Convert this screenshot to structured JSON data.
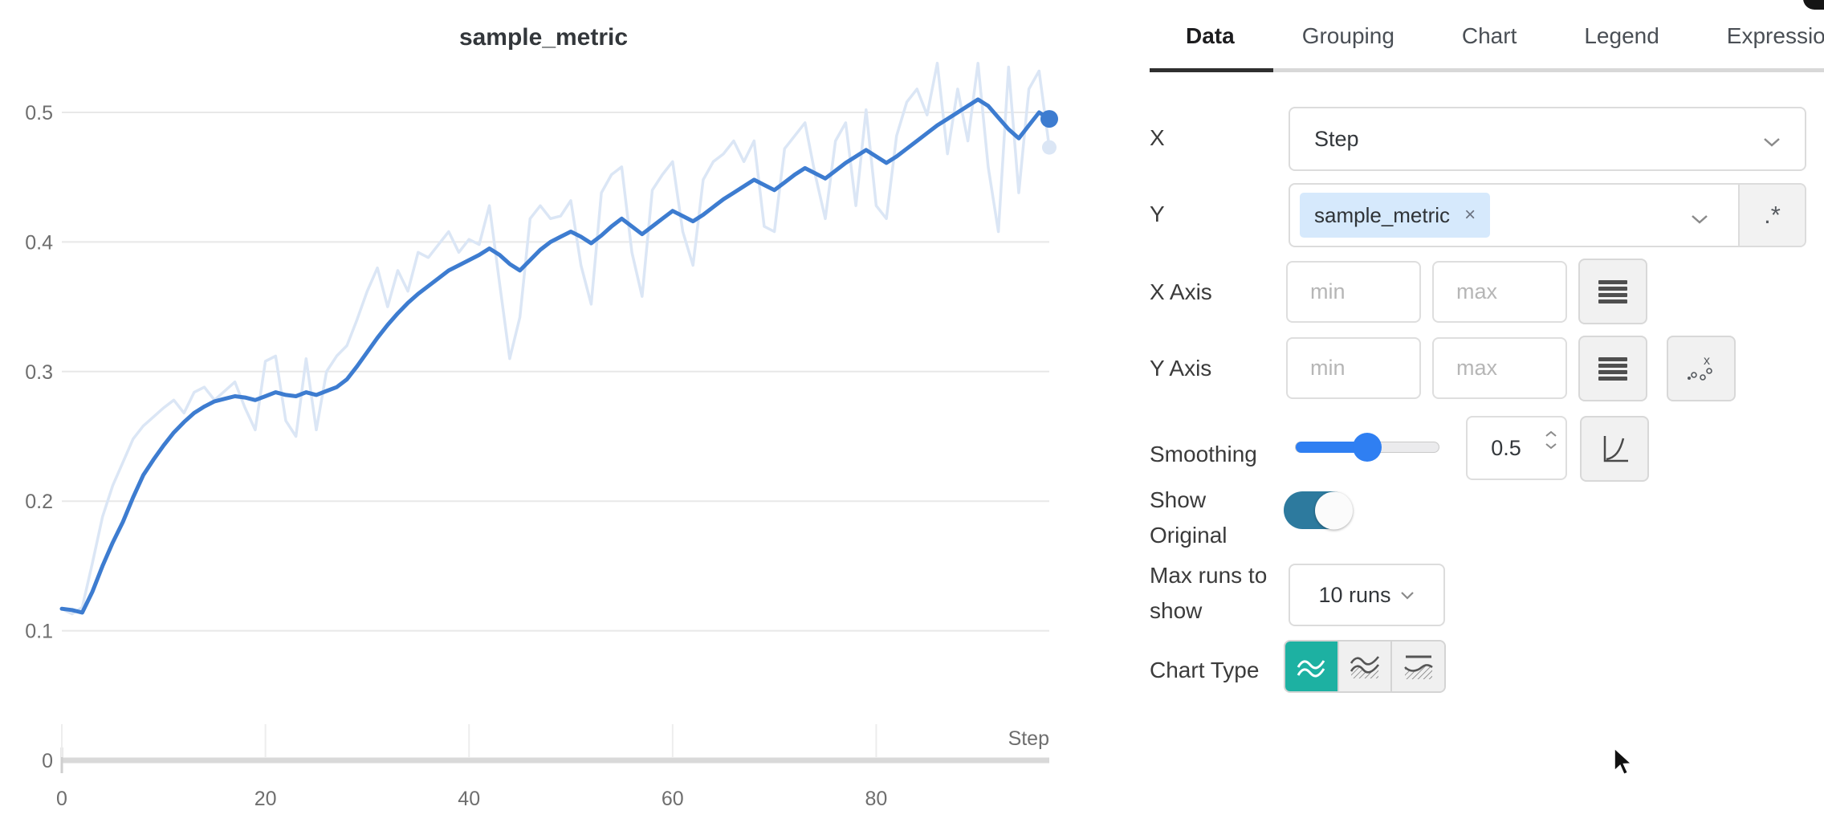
{
  "chart": {
    "title": "sample_metric"
  },
  "chart_data": {
    "type": "line",
    "title": "sample_metric",
    "xlabel": "Step",
    "ylabel": "",
    "x_start": 0,
    "x_step": 1,
    "x_range": [
      0,
      97
    ],
    "ylim": [
      0,
      0.55
    ],
    "x_tick_values": [
      0,
      20,
      40,
      60,
      80
    ],
    "y_tick_values": [
      0,
      0.1,
      0.2,
      0.3,
      0.4,
      0.5
    ],
    "grid": "horizontal",
    "legend": "none",
    "series": [
      {
        "name": "sample_metric (smoothed, 0.5)",
        "color": "#3d7cd0",
        "width": 5,
        "end_marker": true,
        "values": [
          0.117,
          0.116,
          0.114,
          0.13,
          0.15,
          0.168,
          0.184,
          0.203,
          0.22,
          0.232,
          0.243,
          0.253,
          0.261,
          0.268,
          0.273,
          0.277,
          0.279,
          0.281,
          0.28,
          0.278,
          0.281,
          0.284,
          0.282,
          0.281,
          0.284,
          0.282,
          0.285,
          0.288,
          0.294,
          0.304,
          0.315,
          0.326,
          0.336,
          0.345,
          0.353,
          0.36,
          0.366,
          0.372,
          0.378,
          0.382,
          0.386,
          0.39,
          0.395,
          0.39,
          0.383,
          0.378,
          0.386,
          0.394,
          0.4,
          0.404,
          0.408,
          0.404,
          0.399,
          0.405,
          0.412,
          0.418,
          0.412,
          0.406,
          0.412,
          0.418,
          0.424,
          0.42,
          0.416,
          0.421,
          0.427,
          0.433,
          0.438,
          0.443,
          0.448,
          0.444,
          0.44,
          0.446,
          0.452,
          0.457,
          0.453,
          0.449,
          0.455,
          0.461,
          0.466,
          0.471,
          0.466,
          0.461,
          0.466,
          0.472,
          0.478,
          0.484,
          0.49,
          0.495,
          0.5,
          0.505,
          0.51,
          0.505,
          0.496,
          0.487,
          0.48,
          0.49,
          0.5,
          0.495
        ]
      },
      {
        "name": "sample_metric (original)",
        "color": "#dbe6f5",
        "width": 3.5,
        "end_marker": true,
        "values": [
          0.117,
          0.113,
          0.118,
          0.152,
          0.188,
          0.212,
          0.23,
          0.248,
          0.258,
          0.265,
          0.272,
          0.278,
          0.268,
          0.284,
          0.288,
          0.278,
          0.285,
          0.292,
          0.272,
          0.255,
          0.308,
          0.312,
          0.262,
          0.25,
          0.31,
          0.255,
          0.3,
          0.312,
          0.32,
          0.34,
          0.362,
          0.38,
          0.35,
          0.378,
          0.362,
          0.392,
          0.388,
          0.398,
          0.408,
          0.392,
          0.402,
          0.398,
          0.428,
          0.368,
          0.31,
          0.342,
          0.418,
          0.428,
          0.418,
          0.42,
          0.432,
          0.382,
          0.352,
          0.438,
          0.452,
          0.458,
          0.392,
          0.358,
          0.44,
          0.452,
          0.462,
          0.408,
          0.382,
          0.448,
          0.462,
          0.468,
          0.478,
          0.462,
          0.478,
          0.412,
          0.408,
          0.472,
          0.482,
          0.492,
          0.452,
          0.418,
          0.478,
          0.492,
          0.428,
          0.502,
          0.428,
          0.418,
          0.482,
          0.508,
          0.518,
          0.498,
          0.538,
          0.468,
          0.518,
          0.478,
          0.538,
          0.458,
          0.408,
          0.535,
          0.438,
          0.518,
          0.532,
          0.473
        ]
      }
    ]
  },
  "panel": {
    "tabs": [
      {
        "label": "Data"
      },
      {
        "label": "Grouping"
      },
      {
        "label": "Chart"
      },
      {
        "label": "Legend"
      },
      {
        "label": "Expressions"
      }
    ],
    "rows": {
      "x": {
        "label": "X",
        "value": "Step"
      },
      "y": {
        "label": "Y",
        "tag": "sample_metric",
        "remove_icon": "×",
        "regex_button": ".*"
      },
      "x_axis": {
        "label": "X Axis",
        "min_placeholder": "min",
        "max_placeholder": "max"
      },
      "y_axis": {
        "label": "Y Axis",
        "min_placeholder": "min",
        "max_placeholder": "max"
      },
      "smoothing": {
        "label": "Smoothing",
        "value": "0.5"
      },
      "show_original": {
        "label_line1": "Show",
        "label_line2": "Original",
        "state": "on"
      },
      "max_runs": {
        "label_line1": "Max runs to",
        "label_line2": "show",
        "value": "10 runs"
      },
      "chart_type": {
        "label": "Chart Type"
      }
    },
    "colors": {
      "accent_teal": "#1db1a2",
      "toggle_on": "#2d7a9e",
      "slider_blue": "#2f7ff2",
      "tag_bg": "#d6e9fc",
      "line_blue": "#3d7cd0"
    }
  }
}
